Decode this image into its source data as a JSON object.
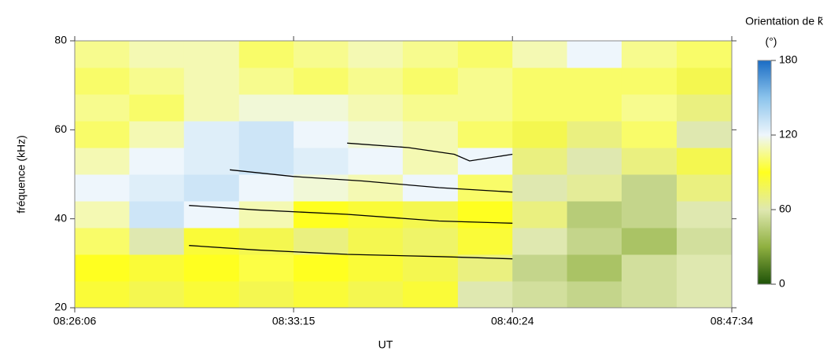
{
  "chart_data": {
    "type": "heatmap",
    "ylabel": "fréquence (kHz)",
    "xlabel": "UT",
    "colorbar_title": "Orientation de k̃",
    "colorbar_unit": "(°)",
    "xlim": [
      "08:26:06",
      "08:47:34"
    ],
    "xticks": [
      "08:26:06",
      "08:33:15",
      "08:40:24",
      "08:47:34"
    ],
    "ylim": [
      20,
      80
    ],
    "yticks": [
      20,
      40,
      60,
      80
    ],
    "zlim": [
      0,
      180
    ],
    "zticks": [
      0,
      60,
      120,
      180
    ],
    "colormap": [
      "#1e5208",
      "#8fb040",
      "#dfe8b0",
      "#ffff20",
      "#eef6fc",
      "#8cc4ec",
      "#1a6cc4"
    ],
    "xbins": [
      "08:26:06",
      "08:27:53",
      "08:29:40",
      "08:31:28",
      "08:33:15",
      "08:35:02",
      "08:36:49",
      "08:38:37",
      "08:40:24",
      "08:42:11",
      "08:43:58",
      "08:45:46",
      "08:47:34"
    ],
    "ybins": [
      20,
      26,
      32,
      38,
      44,
      50,
      56,
      62,
      68,
      74,
      80
    ],
    "z": [
      [
        85,
        80,
        85,
        80,
        85,
        80,
        85,
        60,
        55,
        50,
        55,
        60
      ],
      [
        90,
        85,
        90,
        95,
        90,
        85,
        80,
        70,
        50,
        40,
        55,
        60
      ],
      [
        100,
        60,
        85,
        80,
        70,
        80,
        75,
        85,
        60,
        50,
        40,
        55
      ],
      [
        110,
        130,
        120,
        110,
        90,
        85,
        80,
        90,
        70,
        45,
        50,
        60
      ],
      [
        120,
        125,
        130,
        120,
        115,
        110,
        120,
        100,
        60,
        65,
        50,
        70
      ],
      [
        110,
        120,
        125,
        130,
        125,
        120,
        110,
        120,
        70,
        60,
        70,
        80
      ],
      [
        100,
        110,
        125,
        130,
        120,
        115,
        110,
        100,
        80,
        70,
        100,
        60
      ],
      [
        105,
        100,
        110,
        115,
        115,
        110,
        105,
        105,
        100,
        100,
        105,
        70
      ],
      [
        100,
        105,
        110,
        105,
        100,
        105,
        100,
        105,
        100,
        100,
        100,
        80
      ],
      [
        105,
        110,
        110,
        100,
        105,
        110,
        105,
        100,
        110,
        120,
        105,
        100
      ]
    ],
    "traces": [
      {
        "color": "#000000",
        "x": [
          "08:35:00",
          "08:37:00",
          "08:38:30",
          "08:39:00",
          "08:40:24"
        ],
        "values": [
          57,
          56,
          54.5,
          53,
          54.5
        ]
      },
      {
        "color": "#000000",
        "x": [
          "08:31:10",
          "08:33:15",
          "08:35:30",
          "08:38:00",
          "08:40:24"
        ],
        "values": [
          51,
          49.5,
          48.5,
          47,
          46
        ]
      },
      {
        "color": "#000000",
        "x": [
          "08:29:50",
          "08:32:00",
          "08:35:00",
          "08:38:00",
          "08:40:24"
        ],
        "values": [
          43,
          42,
          41,
          39.5,
          39
        ]
      },
      {
        "color": "#000000",
        "x": [
          "08:29:50",
          "08:32:00",
          "08:35:00",
          "08:38:00",
          "08:40:24"
        ],
        "values": [
          34,
          33,
          32,
          31.5,
          31
        ]
      }
    ]
  }
}
